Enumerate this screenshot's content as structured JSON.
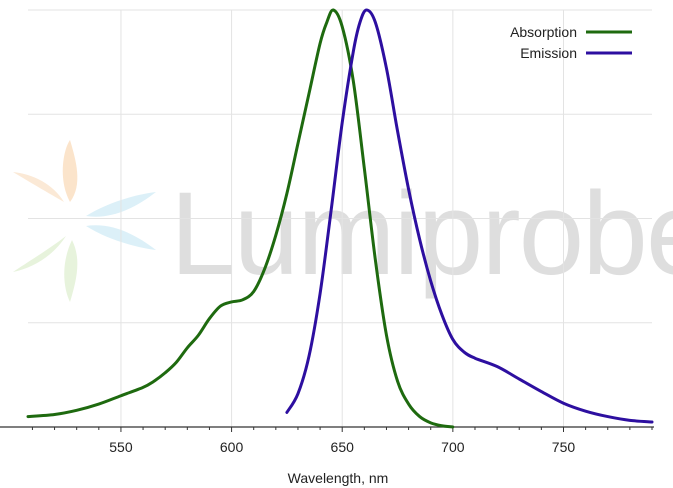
{
  "watermark": {
    "text": "Lumiprobe"
  },
  "chart_data": {
    "type": "line",
    "title": "",
    "xlabel": "Wavelength, nm",
    "ylabel": "",
    "xlim": [
      508,
      790
    ],
    "ylim": [
      0,
      1
    ],
    "xticks": [
      550,
      600,
      650,
      700,
      750
    ],
    "grid": true,
    "legend_position": "top-right",
    "series": [
      {
        "name": "Absorption",
        "color": "#1e6a0f",
        "x": [
          508,
          520,
          530,
          540,
          550,
          560,
          565,
          570,
          575,
          580,
          585,
          590,
          595,
          600,
          605,
          610,
          615,
          620,
          625,
          630,
          635,
          640,
          643,
          646,
          650,
          655,
          660,
          665,
          670,
          675,
          680,
          685,
          690,
          695,
          700
        ],
        "y": [
          0.025,
          0.03,
          0.04,
          0.055,
          0.075,
          0.095,
          0.11,
          0.13,
          0.155,
          0.19,
          0.22,
          0.26,
          0.29,
          0.3,
          0.305,
          0.325,
          0.38,
          0.46,
          0.56,
          0.68,
          0.8,
          0.92,
          0.97,
          1.0,
          0.96,
          0.83,
          0.62,
          0.4,
          0.22,
          0.11,
          0.055,
          0.025,
          0.01,
          0.003,
          0.0
        ]
      },
      {
        "name": "Emission",
        "color": "#2d0fa0",
        "x": [
          625,
          630,
          635,
          640,
          645,
          650,
          655,
          658,
          661,
          665,
          670,
          675,
          680,
          685,
          690,
          695,
          700,
          705,
          710,
          720,
          730,
          740,
          750,
          760,
          770,
          780,
          790
        ],
        "y": [
          0.035,
          0.08,
          0.17,
          0.32,
          0.52,
          0.73,
          0.9,
          0.97,
          1.0,
          0.97,
          0.86,
          0.71,
          0.57,
          0.45,
          0.35,
          0.27,
          0.21,
          0.18,
          0.165,
          0.145,
          0.115,
          0.085,
          0.057,
          0.038,
          0.025,
          0.016,
          0.012
        ]
      }
    ]
  }
}
